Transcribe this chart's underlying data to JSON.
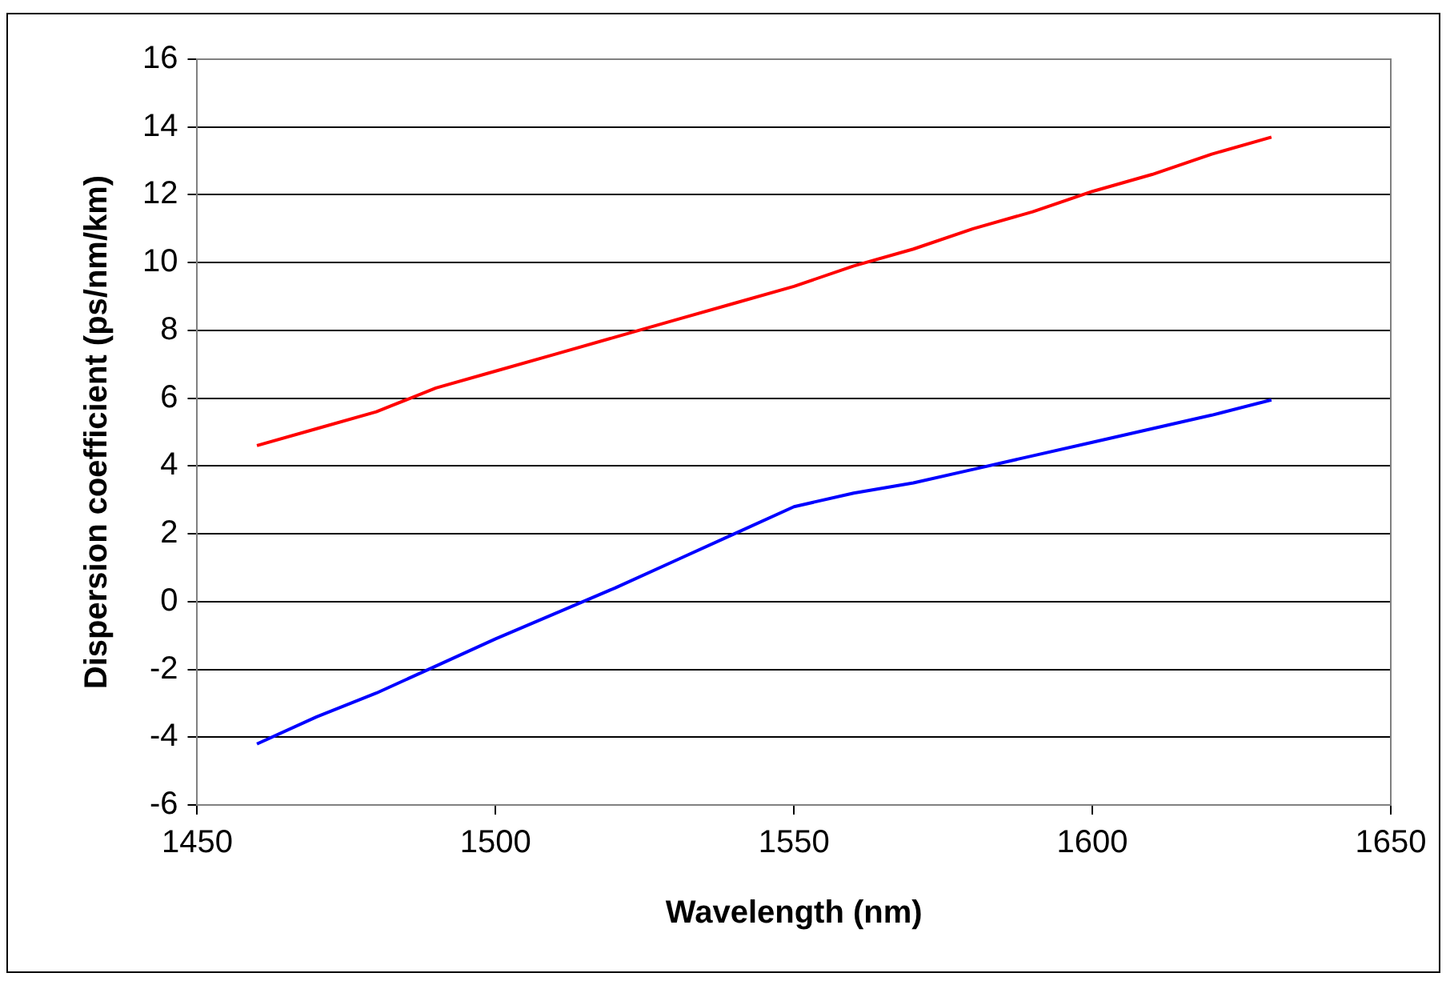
{
  "chart_data": {
    "type": "line",
    "xlabel": "Wavelength (nm)",
    "ylabel": "Dispersion coefficient (ps/nm/km)",
    "xlim": [
      1450,
      1650
    ],
    "xticks": [
      1450,
      1500,
      1550,
      1600,
      1650
    ],
    "ylim": [
      -6,
      16
    ],
    "yticks": [
      -6,
      -4,
      -2,
      0,
      2,
      4,
      6,
      8,
      10,
      12,
      14,
      16
    ],
    "grid": "y",
    "legend": false,
    "marker": "none",
    "line_style": "solid",
    "x": [
      1460,
      1470,
      1480,
      1490,
      1500,
      1510,
      1520,
      1530,
      1540,
      1550,
      1560,
      1570,
      1580,
      1590,
      1600,
      1610,
      1620,
      1630
    ],
    "series": [
      {
        "color": "#ff0000",
        "values": [
          4.6,
          5.1,
          5.6,
          6.3,
          6.8,
          7.3,
          7.8,
          8.3,
          8.8,
          9.3,
          9.9,
          10.4,
          11.0,
          11.5,
          12.1,
          12.6,
          13.2,
          13.7
        ]
      },
      {
        "color": "#0000ff",
        "values": [
          -4.2,
          -3.4,
          -2.7,
          -1.9,
          -1.1,
          -0.35,
          0.4,
          1.2,
          2.0,
          2.8,
          3.2,
          3.5,
          3.9,
          4.3,
          4.7,
          5.1,
          5.5,
          5.95
        ]
      }
    ]
  }
}
